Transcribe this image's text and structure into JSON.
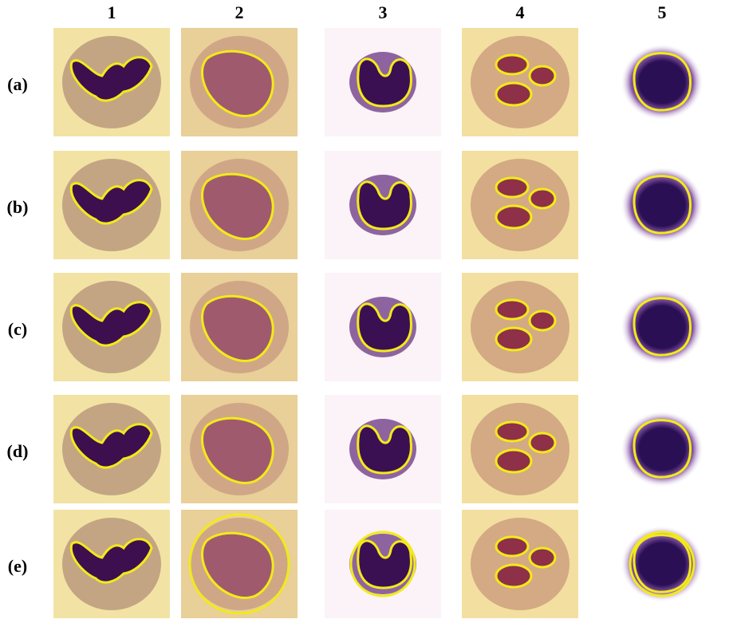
{
  "columns": [
    "1",
    "2",
    "3",
    "4",
    "5"
  ],
  "rows": [
    "(a)",
    "(b)",
    "(c)",
    "(d)",
    "(e)"
  ]
}
